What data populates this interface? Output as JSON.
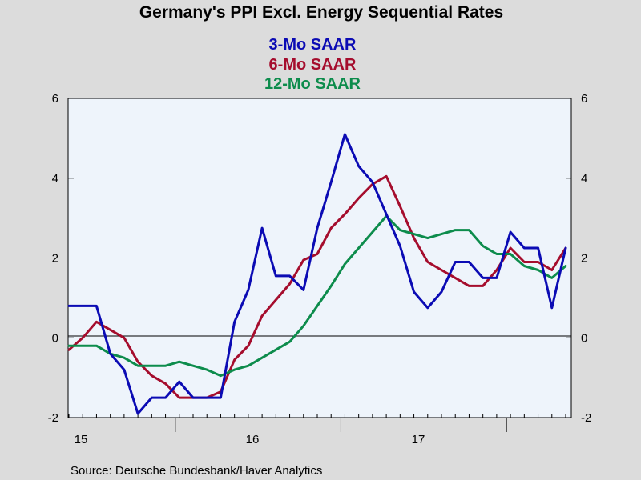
{
  "chart_data": {
    "type": "line",
    "title": "Germany's PPI Excl. Energy Sequential Rates",
    "series": [
      {
        "name": "3-Mo SAAR",
        "color": "#0b0bb4",
        "values": [
          0.8,
          0.8,
          0.8,
          -0.4,
          -0.8,
          -1.9,
          -1.5,
          -1.5,
          -1.1,
          -1.5,
          -1.5,
          -1.5,
          0.4,
          1.2,
          2.75,
          1.55,
          1.55,
          1.2,
          2.75,
          3.9,
          5.1,
          4.3,
          3.9,
          3.1,
          2.3,
          1.15,
          0.75,
          1.15,
          1.9,
          1.9,
          1.5,
          1.5,
          2.65,
          2.25,
          2.25,
          0.75,
          2.25
        ]
      },
      {
        "name": "6-Mo SAAR",
        "color": "#a50d2d",
        "values": [
          -0.3,
          0.0,
          0.4,
          0.2,
          0.0,
          -0.6,
          -0.95,
          -1.15,
          -1.5,
          -1.5,
          -1.5,
          -1.35,
          -0.55,
          -0.2,
          0.55,
          0.95,
          1.35,
          1.95,
          2.1,
          2.75,
          3.1,
          3.5,
          3.85,
          4.05,
          3.3,
          2.5,
          1.9,
          1.7,
          1.5,
          1.3,
          1.3,
          1.7,
          2.25,
          1.9,
          1.9,
          1.7,
          2.25
        ]
      },
      {
        "name": "12-Mo SAAR",
        "color": "#0d8c4c",
        "values": [
          -0.2,
          -0.2,
          -0.2,
          -0.4,
          -0.5,
          -0.7,
          -0.7,
          -0.7,
          -0.6,
          -0.7,
          -0.8,
          -0.95,
          -0.8,
          -0.7,
          -0.5,
          -0.3,
          -0.1,
          0.3,
          0.8,
          1.3,
          1.85,
          2.25,
          2.65,
          3.05,
          2.7,
          2.6,
          2.5,
          2.6,
          2.7,
          2.7,
          2.3,
          2.1,
          2.1,
          1.8,
          1.7,
          1.5,
          1.8
        ]
      }
    ],
    "x_tick_labels": [
      "15",
      "16",
      "17"
    ],
    "y_ticks": [
      "6",
      "4",
      "2",
      "0",
      "-2"
    ],
    "y_ticks_values": [
      6,
      4,
      2,
      0,
      -2
    ],
    "ylim": [
      -2,
      6
    ],
    "zero_line": true,
    "grid": false,
    "plot_background": "#eef4fb",
    "page_background": "#dcdcdc",
    "source": "Source:  Deutsche Bundesbank/Haver Analytics"
  }
}
